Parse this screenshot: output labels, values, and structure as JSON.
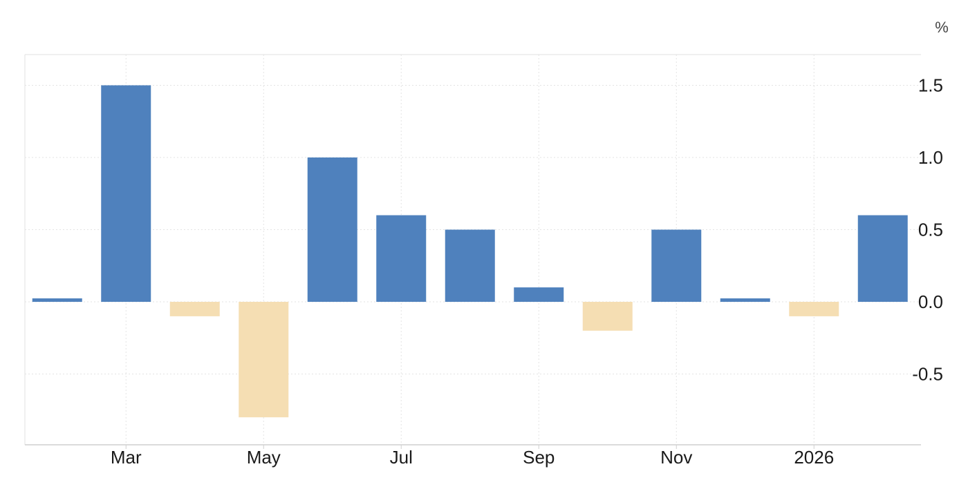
{
  "chart_data": {
    "type": "bar",
    "unit_label": "%",
    "categories": [
      "2025-02",
      "2025-03",
      "2025-04",
      "2025-05",
      "2025-06",
      "2025-07",
      "2025-08",
      "2025-09",
      "2025-10",
      "2025-11",
      "2025-12",
      "2026-01",
      "2026-02"
    ],
    "values": [
      0.0,
      1.5,
      -0.1,
      -0.8,
      1.0,
      0.6,
      0.5,
      0.1,
      -0.2,
      0.5,
      0.0,
      -0.1,
      0.6
    ],
    "x_tick_labels": [
      {
        "label": "Mar",
        "category": "2025-03"
      },
      {
        "label": "May",
        "category": "2025-05"
      },
      {
        "label": "Jul",
        "category": "2025-07"
      },
      {
        "label": "Sep",
        "category": "2025-09"
      },
      {
        "label": "Nov",
        "category": "2025-11"
      },
      {
        "label": "2026",
        "category": "2026-01"
      }
    ],
    "y_ticks": [
      1.5,
      1.0,
      0.5,
      0.0,
      -0.5
    ],
    "y_tick_labels": [
      "1.5",
      "1.0",
      "0.5",
      "0.0",
      "-0.5"
    ],
    "ylim": [
      -1.0,
      1.7
    ],
    "y_axis_side": "right",
    "grid": true,
    "colors": {
      "positive": "#4f81bd",
      "negative": "#f5deb3",
      "grid": "#e3e3e3",
      "frame": "#e0e0e0"
    }
  }
}
